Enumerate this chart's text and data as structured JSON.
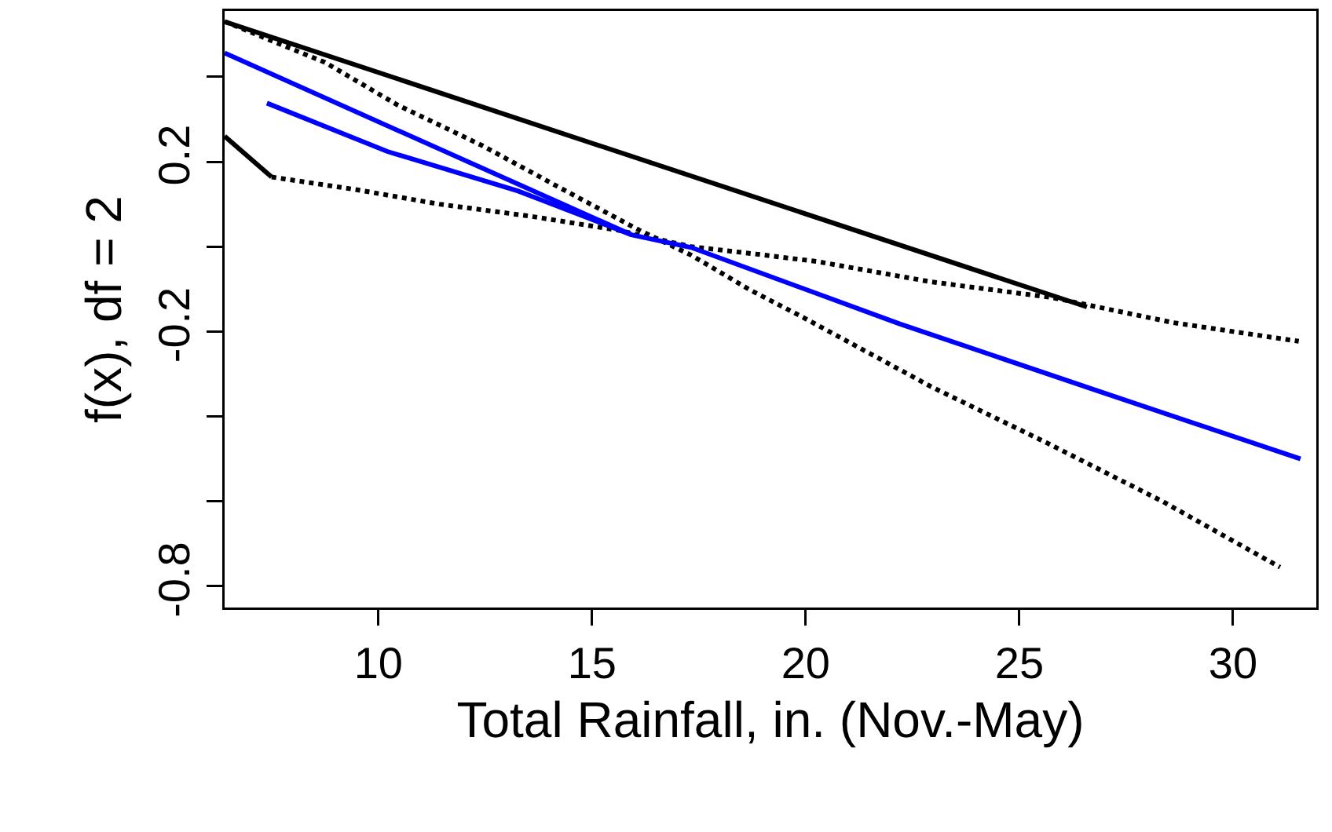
{
  "chart_data": {
    "type": "line",
    "xlabel": "Total Rainfall, in. (Nov.-May)",
    "ylabel": "f(x), df = 2",
    "xlim": [
      6.4,
      31.95
    ],
    "ylim": [
      -0.85,
      0.555
    ],
    "xticks": [
      10,
      15,
      20,
      25,
      30
    ],
    "yticks": [
      {
        "value": -0.8,
        "label": "-0.8"
      },
      {
        "value": -0.6,
        "label": null
      },
      {
        "value": -0.4,
        "label": null
      },
      {
        "value": -0.2,
        "label": "-0.2"
      },
      {
        "value": 0,
        "label": null
      },
      {
        "value": 0.2,
        "label": "0.2"
      },
      {
        "value": 0.4,
        "label": null
      }
    ],
    "grid": false,
    "marker": "none",
    "series": [
      {
        "color": "#000000",
        "line_style": "solid",
        "x": [
          6.4,
          26.58
        ],
        "values": [
          0.53,
          -0.142
        ]
      },
      {
        "color": "#000000",
        "line_style": "solid",
        "x": [
          6.4,
          7.5
        ],
        "values": [
          0.26,
          0.164
        ]
      },
      {
        "color": "#000000",
        "line_style": "dotted",
        "x": [
          7.5,
          9.49,
          11.43,
          13.53,
          15.59,
          17.32,
          18.79,
          20.26,
          22.94,
          25.77,
          28.6,
          31.54
        ],
        "values": [
          0.164,
          0.134,
          0.1,
          0.072,
          0.039,
          0.0,
          -0.017,
          -0.035,
          -0.083,
          -0.12,
          -0.179,
          -0.223
        ]
      },
      {
        "color": "#000000",
        "line_style": "dotted",
        "x": [
          6.4,
          8.75,
          10.44,
          12.43,
          14.26,
          16.1,
          17.32,
          18.68,
          19.89,
          22.94,
          25.66,
          28.35,
          31.1
        ],
        "values": [
          0.53,
          0.434,
          0.334,
          0.238,
          0.138,
          0.039,
          -0.02,
          -0.101,
          -0.164,
          -0.33,
          -0.463,
          -0.6,
          -0.755
        ]
      },
      {
        "color": "#0000ff",
        "line_style": "solid",
        "x": [
          6.4,
          15.92
        ],
        "values": [
          0.456,
          0.028
        ]
      },
      {
        "color": "#0000ff",
        "line_style": "solid",
        "x": [
          7.39,
          10.21,
          13.27,
          15.92,
          17.32,
          22.2,
          26.87,
          31.58
        ],
        "values": [
          0.338,
          0.224,
          0.131,
          0.028,
          -0.002,
          -0.182,
          -0.341,
          -0.5
        ]
      }
    ]
  }
}
